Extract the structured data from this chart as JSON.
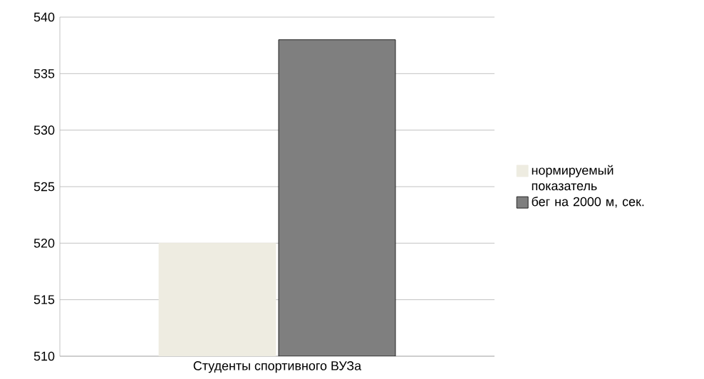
{
  "chart_data": {
    "type": "bar",
    "categories": [
      "Студенты спортивного ВУЗа"
    ],
    "series": [
      {
        "name": "нормируемый показатель",
        "color": "#eeece1",
        "values": [
          520
        ]
      },
      {
        "name": "бег на 2000 м, сек.",
        "color": "#7f7f7f",
        "values": [
          538
        ]
      }
    ],
    "ylim": [
      510,
      540
    ],
    "yticks": [
      510,
      515,
      520,
      525,
      530,
      535,
      540
    ],
    "grid": "y",
    "legend": "right"
  }
}
